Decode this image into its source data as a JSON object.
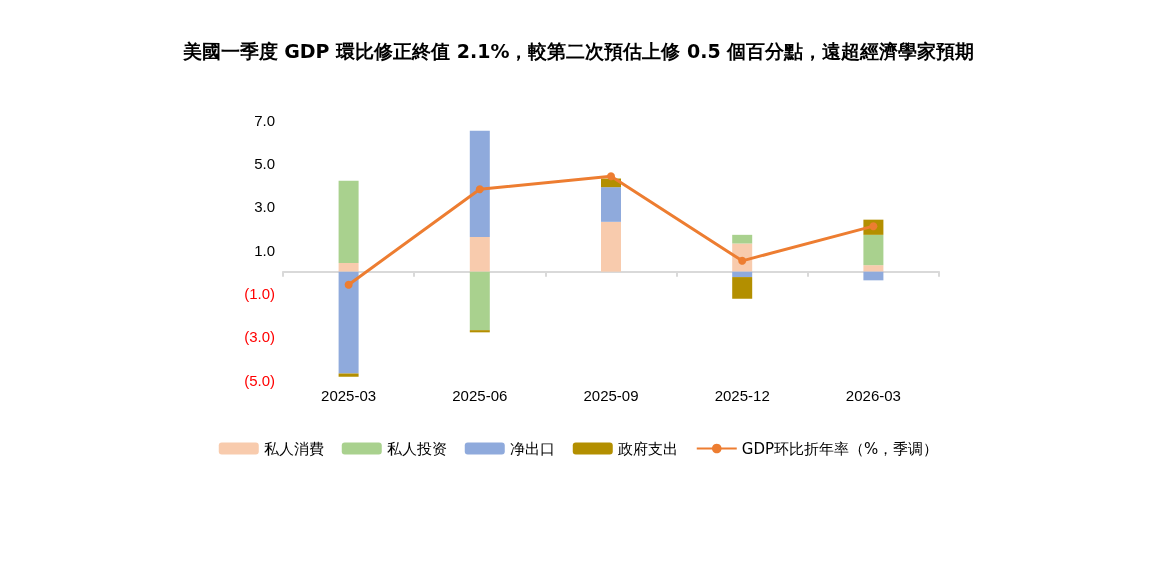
{
  "chart_data": {
    "type": "bar",
    "stacked": true,
    "title": "美國一季度 GDP 環比修正終值 2.1%，較第二次預估上修 0.5 個百分點，遠超經濟學家預期",
    "categories": [
      "2025-03",
      "2025-06",
      "2025-09",
      "2025-12",
      "2026-03"
    ],
    "series": [
      {
        "name": "私人消費",
        "color": "#f8cbad",
        "values": [
          0.4,
          1.6,
          2.3,
          1.3,
          0.3
        ]
      },
      {
        "name": "私人投资",
        "color": "#a9d18e",
        "values": [
          3.8,
          -2.7,
          null,
          0.4,
          1.4
        ]
      },
      {
        "name": "净出口",
        "color": "#8faadc",
        "values": [
          -4.7,
          4.9,
          1.6,
          -0.25,
          -0.4
        ]
      },
      {
        "name": "政府支出",
        "color": "#b38f00",
        "values": [
          -0.15,
          -0.1,
          0.4,
          -1.0,
          0.7
        ]
      },
      {
        "name": "GDP环比折年率（%，季调）",
        "type": "line",
        "color": "#ed7d31",
        "values": [
          -0.6,
          3.8,
          4.4,
          0.5,
          2.1
        ]
      }
    ],
    "ylim": [
      -5,
      7
    ],
    "yticks": [
      {
        "value": -5,
        "label": "(5.0)"
      },
      {
        "value": -3,
        "label": "(3.0)"
      },
      {
        "value": -1,
        "label": "(1.0)"
      },
      {
        "value": 1,
        "label": "1.0"
      },
      {
        "value": 3,
        "label": "3.0"
      },
      {
        "value": 5,
        "label": "5.0"
      },
      {
        "value": 7,
        "label": "7.0"
      }
    ],
    "grid": false,
    "legend": "bottom",
    "marker": "circle"
  }
}
